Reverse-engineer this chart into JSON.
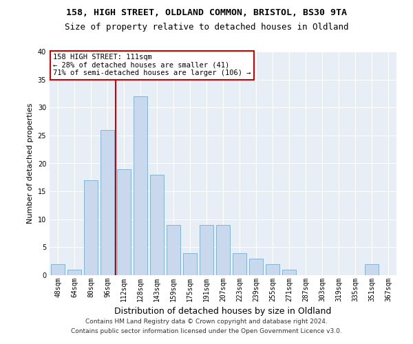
{
  "title1": "158, HIGH STREET, OLDLAND COMMON, BRISTOL, BS30 9TA",
  "title2": "Size of property relative to detached houses in Oldland",
  "xlabel": "Distribution of detached houses by size in Oldland",
  "ylabel": "Number of detached properties",
  "categories": [
    "48sqm",
    "64sqm",
    "80sqm",
    "96sqm",
    "112sqm",
    "128sqm",
    "143sqm",
    "159sqm",
    "175sqm",
    "191sqm",
    "207sqm",
    "223sqm",
    "239sqm",
    "255sqm",
    "271sqm",
    "287sqm",
    "303sqm",
    "319sqm",
    "335sqm",
    "351sqm",
    "367sqm"
  ],
  "values": [
    2,
    1,
    17,
    26,
    19,
    32,
    18,
    9,
    4,
    9,
    9,
    4,
    3,
    2,
    1,
    0,
    0,
    0,
    0,
    2,
    0
  ],
  "bar_color": "#c8d8ed",
  "bar_edge_color": "#7aaacb",
  "vline_index": 4,
  "vline_color": "#cc0000",
  "annotation_text": "158 HIGH STREET: 111sqm\n← 28% of detached houses are smaller (41)\n71% of semi-detached houses are larger (106) →",
  "annotation_box_color": "#ffffff",
  "annotation_box_edge": "#cc0000",
  "ylim": [
    0,
    40
  ],
  "yticks": [
    0,
    5,
    10,
    15,
    20,
    25,
    30,
    35,
    40
  ],
  "footer1": "Contains HM Land Registry data © Crown copyright and database right 2024.",
  "footer2": "Contains public sector information licensed under the Open Government Licence v3.0.",
  "figure_bg": "#ffffff",
  "plot_bg": "#e8eef6",
  "grid_color": "#ffffff",
  "title1_fontsize": 9.5,
  "title2_fontsize": 9,
  "ylabel_fontsize": 8,
  "xlabel_fontsize": 9,
  "tick_fontsize": 7,
  "annotation_fontsize": 7.5,
  "footer_fontsize": 6.5
}
